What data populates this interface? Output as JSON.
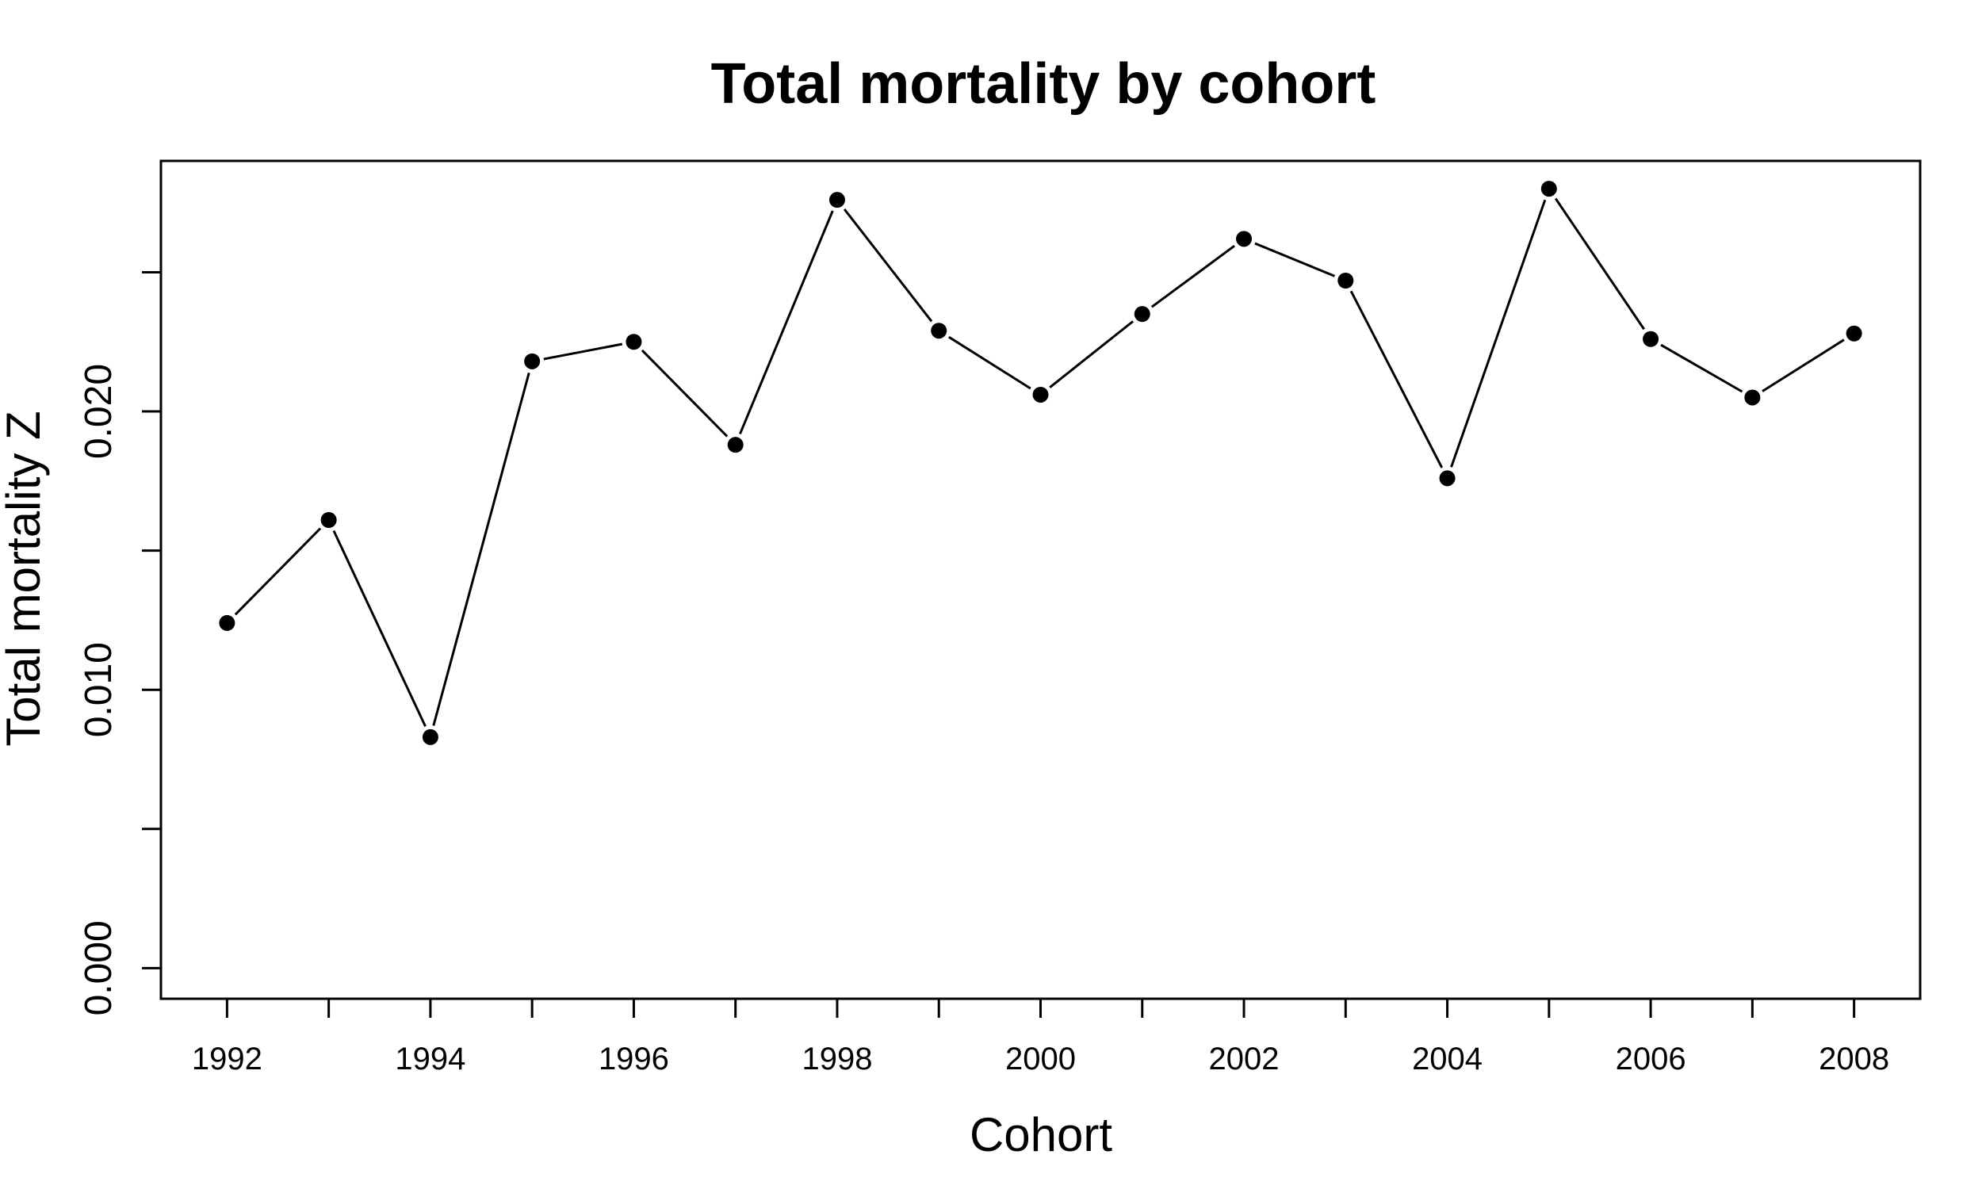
{
  "chart_data": {
    "type": "line",
    "title": "Total mortality by cohort",
    "xlabel": "Cohort",
    "ylabel": "Total mortality Z",
    "x": [
      1992,
      1993,
      1994,
      1995,
      1996,
      1997,
      1998,
      1999,
      2000,
      2001,
      2002,
      2003,
      2004,
      2005,
      2006,
      2007,
      2008
    ],
    "y": [
      0.0124,
      0.0161,
      0.0083,
      0.0218,
      0.0225,
      0.0188,
      0.0276,
      0.0229,
      0.0206,
      0.0235,
      0.0262,
      0.0247,
      0.0176,
      0.028,
      0.0226,
      0.0205,
      0.0228
    ],
    "xlim": [
      1991.35,
      2008.65
    ],
    "ylim": [
      -0.0011,
      0.029
    ],
    "x_ticks": [
      1992,
      1993,
      1994,
      1995,
      1996,
      1997,
      1998,
      1999,
      2000,
      2001,
      2002,
      2003,
      2004,
      2005,
      2006,
      2007,
      2008
    ],
    "x_tick_labels": [
      "1992",
      "",
      "1994",
      "",
      "1996",
      "",
      "1998",
      "",
      "2000",
      "",
      "2002",
      "",
      "2004",
      "",
      "2006",
      "",
      "2008"
    ],
    "y_ticks": [
      0.0,
      0.005,
      0.01,
      0.015,
      0.02,
      0.025
    ],
    "y_tick_labels": [
      "0.000",
      "",
      "0.010",
      "",
      "0.020",
      ""
    ],
    "grid": false,
    "legend": "none",
    "markers": "filled-circle",
    "line_color": "#000000",
    "marker_color": "#000000"
  }
}
